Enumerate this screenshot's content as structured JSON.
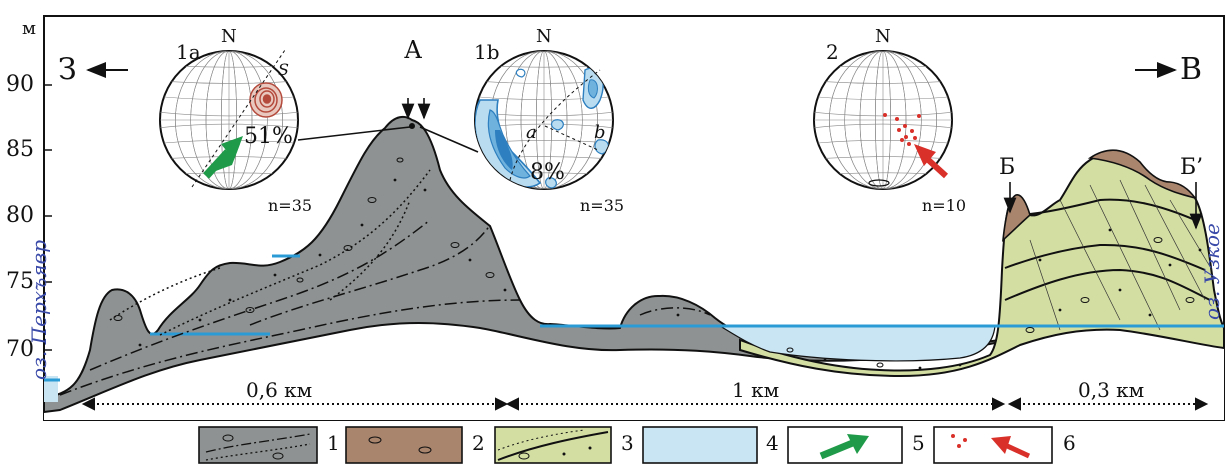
{
  "profile": {
    "y_unit": "м",
    "y_ticks": [
      "90",
      "85",
      "80",
      "75",
      "70"
    ],
    "west_label": "З",
    "east_label": "В",
    "point_a": "А",
    "point_b": "Б",
    "point_b_prime": "Б’",
    "lake_left": "оз. Перхъявр",
    "lake_right": "оз. Узкое",
    "distances": [
      "0,6 км",
      "1 км",
      "0,3 км"
    ]
  },
  "stereonets": [
    {
      "id": "1a",
      "label": "1a",
      "north": "N",
      "percent": "51%",
      "n": "n=35",
      "plane_label": "S"
    },
    {
      "id": "1b",
      "label": "1b",
      "north": "N",
      "percent": "8%",
      "n": "n=35",
      "axis_a": "a",
      "axis_b": "b"
    },
    {
      "id": "2",
      "label": "2",
      "north": "N",
      "n": "n=10"
    }
  ],
  "legend": [
    "1",
    "2",
    "3",
    "4",
    "5",
    "6"
  ],
  "colors": {
    "till_gray": "#8f9292",
    "till_brown": "#a9856d",
    "sediment_green": "#d3dea3",
    "water_blue": "#c9e4f3",
    "water_line": "#2b9bd6",
    "arrow_green": "#1f9a48",
    "arrow_red": "#d9302a",
    "contour_red": "#b44a3c",
    "contour_blue": "#2d7fbf"
  }
}
